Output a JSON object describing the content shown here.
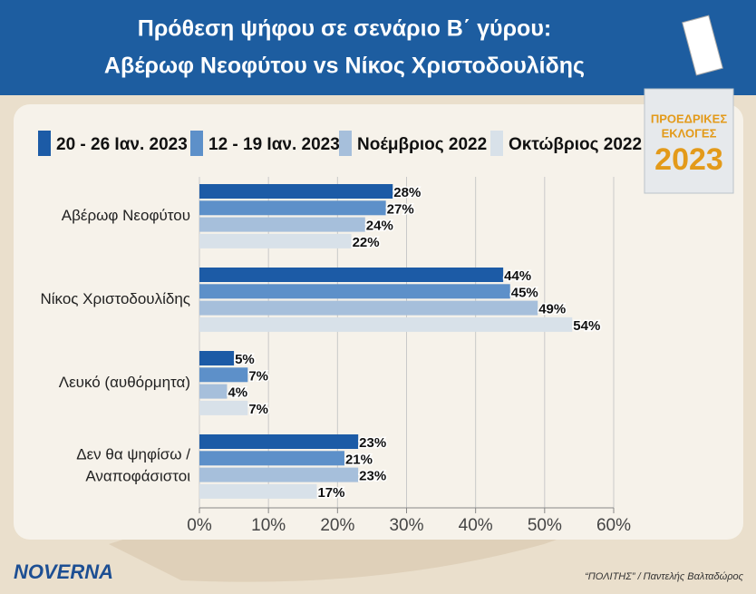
{
  "chart_data": {
    "type": "hbar",
    "title": "Πρόθεση ψήφου σε σενάριο Β΄ γύρου:",
    "subtitle": "Αβέρωφ Νεοφύτου vs Νίκος Χριστοδουλίδης",
    "categories": [
      "Αβέρωφ Νεοφύτου",
      "Νίκος Χριστοδουλίδης",
      "Λευκό (αυθόρμητα)",
      "Δεν θα ψηφίσω /\nΑναποφάσιστοι"
    ],
    "series": [
      {
        "name": "20 - 26 Ιαν. 2023",
        "color": "#1c5ba6",
        "values": [
          28,
          44,
          5,
          23
        ],
        "value_labels": [
          "28%",
          "44%",
          "5%",
          "23%"
        ]
      },
      {
        "name": "12 - 19 Ιαν. 2023",
        "color": "#5d90c9",
        "values": [
          27,
          45,
          7,
          21
        ],
        "value_labels": [
          "27%",
          "45%",
          "7%",
          "21%"
        ]
      },
      {
        "name": "Νοέμβριος 2022",
        "color": "#a6bfdb",
        "values": [
          24,
          49,
          4,
          23
        ],
        "value_labels": [
          "24%",
          "49%",
          "4%",
          "23%"
        ]
      },
      {
        "name": "Οκτώβριος 2022",
        "color": "#d8e1e9",
        "values": [
          22,
          54,
          7,
          17
        ],
        "value_labels": [
          "22%",
          "54%",
          "7%",
          "17%"
        ]
      }
    ],
    "xlim": [
      0,
      60
    ],
    "xticks": [
      {
        "value": 0,
        "label": "0%"
      },
      {
        "value": 10,
        "label": "10%"
      },
      {
        "value": 20,
        "label": "20%"
      },
      {
        "value": 30,
        "label": "30%"
      },
      {
        "value": 40,
        "label": "40%"
      },
      {
        "value": 50,
        "label": "50%"
      },
      {
        "value": 60,
        "label": "60%"
      }
    ],
    "grid": true
  },
  "badge": {
    "line1": "ΠΡΟΕΔΡΙΚΕΣ",
    "line2": "ΕΚΛΟΓΕΣ",
    "year": "2023"
  },
  "logo": "NOVERNA",
  "source": "“ΠΟΛΙΤΗΣ” / Παντελής Βαλταδώρος"
}
